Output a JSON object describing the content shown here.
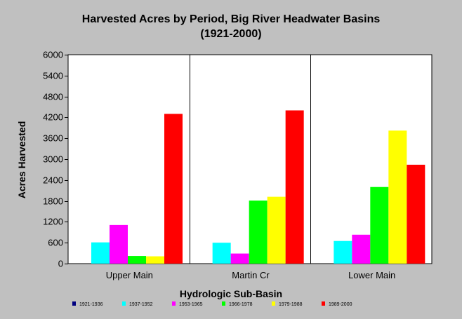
{
  "chart_data": {
    "type": "bar",
    "title": "Harvested Acres by Period, Big River Headwater Basins",
    "subtitle": "(1921-2000)",
    "xlabel": "Hydrologic Sub-Basin",
    "ylabel": "Acres Harvested",
    "categories": [
      "Upper Main",
      "Martin Cr",
      "Lower Main"
    ],
    "ylim": [
      0,
      6000
    ],
    "yticks": [
      "0",
      "600",
      "1200",
      "1800",
      "2400",
      "3000",
      "3600",
      "4200",
      "4800",
      "5400",
      "6000"
    ],
    "grid": false,
    "legend_position": "bottom",
    "series": [
      {
        "name": "1921-1936",
        "color": "#000080",
        "values": [
          0,
          0,
          0
        ]
      },
      {
        "name": "1937-1952",
        "color": "#00ffff",
        "values": [
          610,
          600,
          650
        ]
      },
      {
        "name": "1953-1965",
        "color": "#ff00ff",
        "values": [
          1110,
          290,
          830
        ]
      },
      {
        "name": "1966-1978",
        "color": "#00ff00",
        "values": [
          220,
          1810,
          2200
        ]
      },
      {
        "name": "1979-1988",
        "color": "#ffff00",
        "values": [
          210,
          1920,
          3820
        ]
      },
      {
        "name": "1989-2000",
        "color": "#ff0000",
        "values": [
          4300,
          4400,
          2840
        ]
      }
    ]
  }
}
